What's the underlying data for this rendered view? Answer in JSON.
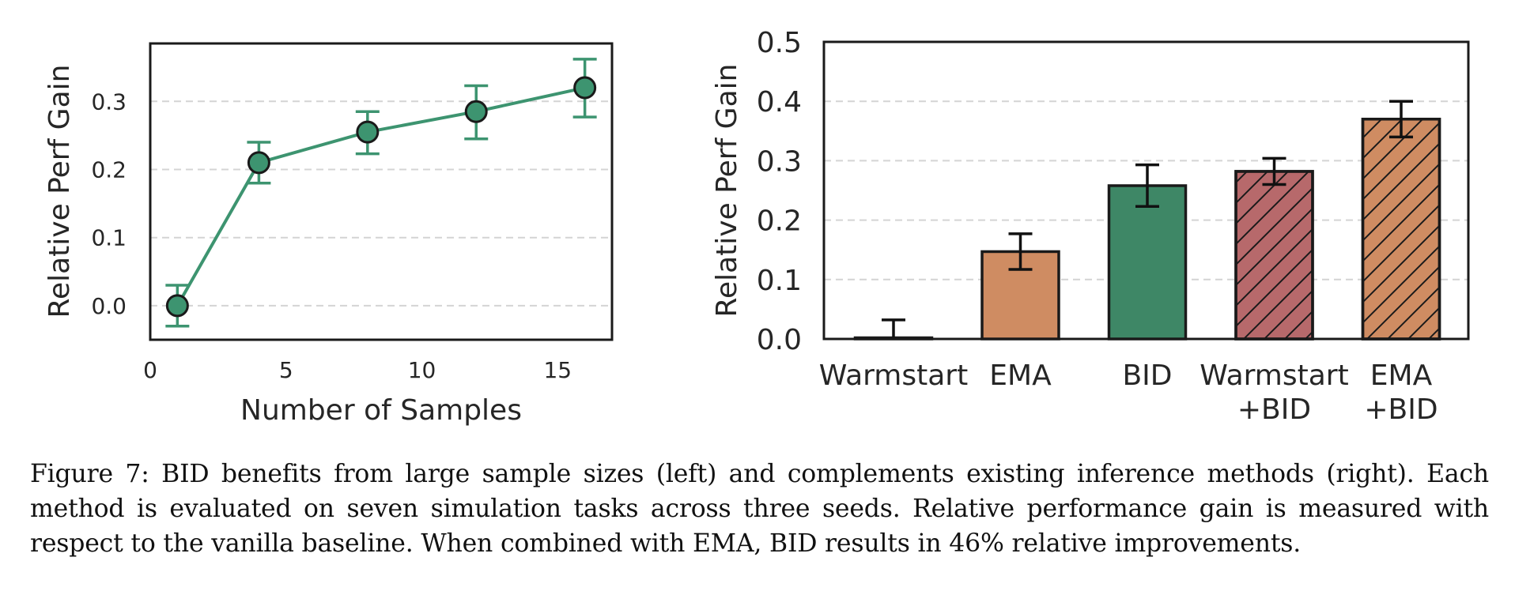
{
  "chart_data": [
    {
      "type": "line",
      "xlabel": "Number of Samples",
      "ylabel": "Relative Perf Gain",
      "xlim": [
        0,
        17
      ],
      "ylim": [
        -0.05,
        0.385
      ],
      "xticks": [
        "0",
        "5",
        "10",
        "15"
      ],
      "yticks": [
        "0.0",
        "0.1",
        "0.2",
        "0.3"
      ],
      "grid": "horizontal dashed",
      "series": [
        {
          "name": "BID",
          "x": [
            1,
            4,
            8,
            12,
            16
          ],
          "y": [
            0.0,
            0.21,
            0.255,
            0.285,
            0.32
          ],
          "err_low": [
            0.03,
            0.03,
            0.032,
            0.04,
            0.043
          ],
          "err_high": [
            0.03,
            0.03,
            0.03,
            0.038,
            0.042
          ],
          "color": "#3d9470"
        }
      ]
    },
    {
      "type": "bar",
      "xlabel": "",
      "ylabel": "Relative Perf Gain",
      "ylim": [
        0,
        0.5
      ],
      "yticks": [
        "0.0",
        "0.1",
        "0.2",
        "0.3",
        "0.4",
        "0.5"
      ],
      "grid": "horizontal dashed",
      "categories": [
        [
          "Warmstart"
        ],
        [
          "EMA"
        ],
        [
          "BID"
        ],
        [
          "Warmstart",
          "+BID"
        ],
        [
          "EMA",
          "+BID"
        ]
      ],
      "values": [
        0.002,
        0.147,
        0.258,
        0.282,
        0.37
      ],
      "errors": [
        0.03,
        0.03,
        0.035,
        0.022,
        0.03
      ],
      "colors": [
        "#cf8c62",
        "#cf8c62",
        "#3e8766",
        "#b7696b",
        "#cf8c62"
      ],
      "hatched": [
        false,
        false,
        false,
        true,
        true
      ]
    }
  ],
  "caption": "Figure 7: BID benefits from large sample sizes (left) and complements existing inference methods (right). Each method is evaluated on seven simulation tasks across three seeds. Relative performance gain is measured with respect to the vanilla baseline. When combined with EMA, BID results in 46% relative improvements."
}
